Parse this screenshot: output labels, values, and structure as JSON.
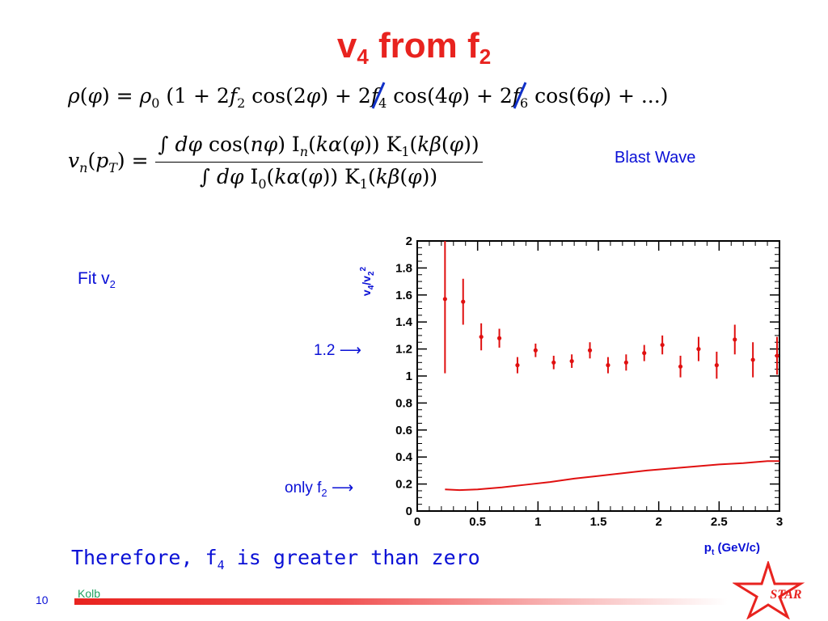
{
  "title": {
    "main": "v",
    "sub1": "4",
    "mid": " from f",
    "sub2": "2"
  },
  "equations": {
    "density": "ρ(φ) = ρ₀ (1 + 2f₂ cos(2φ) + 2f₄ cos(4φ) + 2f₆ cos(6φ) + ...)",
    "vn": "vₙ(p_T) = ∫ dφ cos(nφ) Iₙ(kα(φ)) K₁(kβ(φ)) / ∫ dφ I₀(kα(φ)) K₁(kβ(φ))"
  },
  "labels": {
    "blast_wave": "Blast Wave",
    "fit": {
      "text": "Fit v",
      "sub": "2"
    },
    "reference": "1.2",
    "only": {
      "text": "only f",
      "sub": "2"
    },
    "conclusion": {
      "pre": "Therefore, f",
      "sub": "4",
      "post": " is greater than zero"
    },
    "page_number": "10",
    "author": "Kolb",
    "logo": "STAR"
  },
  "colors": {
    "title": "#e8231f",
    "text": "#0a10d6",
    "data": "#e01010",
    "author": "#20a060"
  },
  "chart_data": {
    "type": "scatter",
    "xlabel": "p_t (GeV/c)",
    "ylabel": "v_4/v_2^2",
    "xlim": [
      0,
      3
    ],
    "ylim": [
      0,
      2
    ],
    "x_ticks": [
      "0",
      "0.5",
      "1",
      "1.5",
      "2",
      "2.5",
      "3"
    ],
    "y_ticks": [
      "0",
      "0.2",
      "0.4",
      "0.6",
      "0.8",
      "1",
      "1.2",
      "1.4",
      "1.6",
      "1.8",
      "2"
    ],
    "x_tick_values": [
      0,
      0.5,
      1,
      1.5,
      2,
      2.5,
      3
    ],
    "y_tick_values": [
      0,
      0.2,
      0.4,
      0.6,
      0.8,
      1,
      1.2,
      1.4,
      1.6,
      1.8,
      2
    ],
    "grid": false,
    "points": [
      {
        "x": 0.23,
        "y": 1.57,
        "err": 0.55
      },
      {
        "x": 0.38,
        "y": 1.55,
        "err": 0.17
      },
      {
        "x": 0.53,
        "y": 1.29,
        "err": 0.1
      },
      {
        "x": 0.68,
        "y": 1.28,
        "err": 0.07
      },
      {
        "x": 0.83,
        "y": 1.08,
        "err": 0.06
      },
      {
        "x": 0.98,
        "y": 1.19,
        "err": 0.05
      },
      {
        "x": 1.13,
        "y": 1.1,
        "err": 0.05
      },
      {
        "x": 1.28,
        "y": 1.11,
        "err": 0.05
      },
      {
        "x": 1.43,
        "y": 1.19,
        "err": 0.06
      },
      {
        "x": 1.58,
        "y": 1.08,
        "err": 0.06
      },
      {
        "x": 1.73,
        "y": 1.1,
        "err": 0.06
      },
      {
        "x": 1.88,
        "y": 1.17,
        "err": 0.06
      },
      {
        "x": 2.03,
        "y": 1.23,
        "err": 0.07
      },
      {
        "x": 2.18,
        "y": 1.07,
        "err": 0.08
      },
      {
        "x": 2.33,
        "y": 1.2,
        "err": 0.09
      },
      {
        "x": 2.48,
        "y": 1.08,
        "err": 0.1
      },
      {
        "x": 2.63,
        "y": 1.27,
        "err": 0.11
      },
      {
        "x": 2.78,
        "y": 1.12,
        "err": 0.13
      },
      {
        "x": 2.98,
        "y": 1.15,
        "err": 0.14
      }
    ],
    "curve": {
      "x": [
        0.23,
        0.35,
        0.5,
        0.7,
        0.9,
        1.1,
        1.3,
        1.5,
        1.7,
        1.9,
        2.1,
        2.3,
        2.5,
        2.7,
        2.9,
        3.0
      ],
      "y": [
        0.16,
        0.155,
        0.16,
        0.175,
        0.195,
        0.215,
        0.24,
        0.26,
        0.28,
        0.3,
        0.315,
        0.33,
        0.345,
        0.355,
        0.37,
        0.37
      ]
    }
  }
}
